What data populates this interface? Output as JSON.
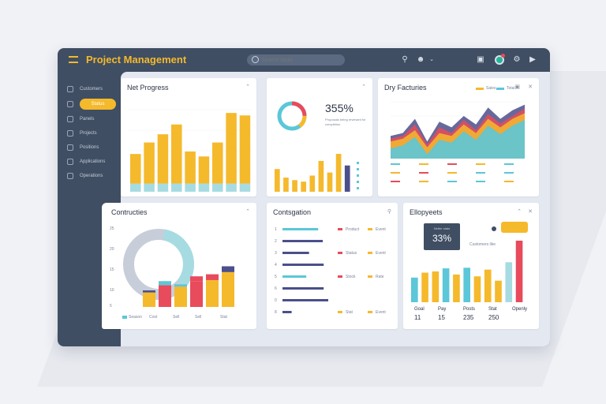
{
  "app": {
    "title": "Project Management",
    "search": {
      "placeholder": "Search tasks",
      "value": ""
    }
  },
  "topbar": {
    "icons": [
      "search-icon",
      "user-icon",
      "chevron-down-icon",
      "clipboard-icon",
      "avatar",
      "settings-icon",
      "play-icon"
    ]
  },
  "sidebar": {
    "items": [
      {
        "label": "Customers"
      },
      {
        "label": "Status",
        "active": true
      },
      {
        "label": "Panels"
      },
      {
        "label": "Projects"
      },
      {
        "label": "Positions"
      },
      {
        "label": "Applications"
      },
      {
        "label": "Operations"
      }
    ]
  },
  "colors": {
    "accent": "#f5b92c",
    "sidebar": "#3f4e63",
    "teal": "#5bc7d8",
    "red": "#e84b5c",
    "navy": "#4b4f8a",
    "light_teal": "#a7dbe2"
  },
  "cards": {
    "net_progress": {
      "title": "Net Progress",
      "chart_data": {
        "type": "bar",
        "stacked": true,
        "series": [
          {
            "values": [
              1.0,
              1.0,
              1.0,
              1.0,
              1.0,
              1.0,
              1.0,
              1.0,
              1.0
            ]
          },
          {
            "values": [
              3.6,
              5.0,
              6.0,
              7.2,
              3.9,
              3.3,
              5.0,
              8.6,
              8.3
            ]
          }
        ],
        "ylim": [
          0,
          10
        ]
      }
    },
    "donut_card": {
      "kpi": "355%",
      "kpi_text": "Proposals being reviewed for completion",
      "chart_data": {
        "type": "bar",
        "values": [
          4.5,
          2.8,
          2.3,
          2.0,
          3.2,
          6.1,
          3.8,
          7.5,
          5.2
        ],
        "highlight_index": 8,
        "ylim": [
          0,
          10
        ]
      },
      "donut": {
        "segments": [
          0.35,
          0.2,
          0.45
        ]
      }
    },
    "day_features": {
      "title": "Dry Facturies",
      "legend": [
        "Sales",
        "Total"
      ],
      "chart_data": {
        "type": "area",
        "x": [
          1,
          2,
          3,
          4,
          5,
          6,
          7,
          8,
          9,
          10,
          11,
          12
        ],
        "series": [
          {
            "values": [
              4.0,
              4.5,
              7.0,
              3.0,
              6.5,
              5.5,
              7.5,
              6.0,
              9.0,
              7.0,
              8.5,
              9.5
            ]
          },
          {
            "values": [
              3.5,
              4.0,
              6.0,
              2.5,
              5.5,
              4.5,
              6.8,
              5.0,
              7.8,
              6.2,
              7.5,
              8.8
            ]
          },
          {
            "values": [
              3.0,
              3.5,
              5.0,
              2.0,
              4.5,
              4.0,
              6.0,
              4.5,
              7.0,
              5.5,
              7.0,
              8.0
            ]
          }
        ],
        "ylim": [
          0,
          10
        ]
      },
      "row_labels": [
        "Phase",
        "Stat",
        "Ads",
        "Set",
        "Cost"
      ]
    },
    "contributors": {
      "title": "Contructies",
      "legend": [
        "Season",
        "Cost",
        "Sell",
        "Sell",
        "Stat"
      ],
      "y_ticks": [
        "25",
        "20",
        "15",
        "10",
        "5"
      ],
      "chart_data": {
        "type": "bar",
        "stacked": true,
        "categories": [
          "",
          "",
          "",
          "",
          "",
          ""
        ],
        "series": [
          {
            "name": "",
            "values": [
              2.0,
              3.0,
              2.8,
              3.5,
              3.7,
              4.8
            ]
          },
          {
            "name": "",
            "values": [
              0.7,
              1.4,
              0.8,
              1.8,
              2.0,
              2.0
            ]
          }
        ],
        "ylim": [
          0,
          10
        ]
      }
    },
    "conversation": {
      "title": "Contsgation",
      "rows": [
        {
          "num": "1",
          "bar": 0.78,
          "tag": "Product",
          "tag2": "Event"
        },
        {
          "num": "2",
          "bar": 0.88,
          "tag": "",
          "tag2": ""
        },
        {
          "num": "3",
          "bar": 0.58,
          "tag": "Status",
          "tag2": "Event"
        },
        {
          "num": "4",
          "bar": 0.9,
          "tag": "",
          "tag2": ""
        },
        {
          "num": "5",
          "bar": 0.52,
          "tag": "Stock",
          "tag2": "Rate"
        },
        {
          "num": "6",
          "bar": 0.9,
          "tag": "",
          "tag2": ""
        },
        {
          "num": "0",
          "bar": 1.0,
          "tag": "",
          "tag2": ""
        },
        {
          "num": "8",
          "bar": 0.2,
          "tag": "Stat",
          "tag2": "Event"
        }
      ]
    },
    "employees": {
      "title": "Ellopyeets",
      "kpi_label": "Netter stats",
      "kpi": "33%",
      "callout": "Customers like",
      "chart_data": {
        "type": "bar",
        "values": [
          4.0,
          4.8,
          5.0,
          5.5,
          4.5,
          5.6,
          4.2,
          5.3,
          3.5,
          6.5,
          10.0
        ],
        "ylim": [
          0,
          10
        ]
      },
      "footer": [
        {
          "label": "Goal",
          "value": "11"
        },
        {
          "label": "Pay",
          "value": "15"
        },
        {
          "label": "Posts",
          "value": "235"
        },
        {
          "label": "Stat",
          "value": "250"
        },
        {
          "label": "Openly",
          "value": ""
        }
      ]
    }
  }
}
